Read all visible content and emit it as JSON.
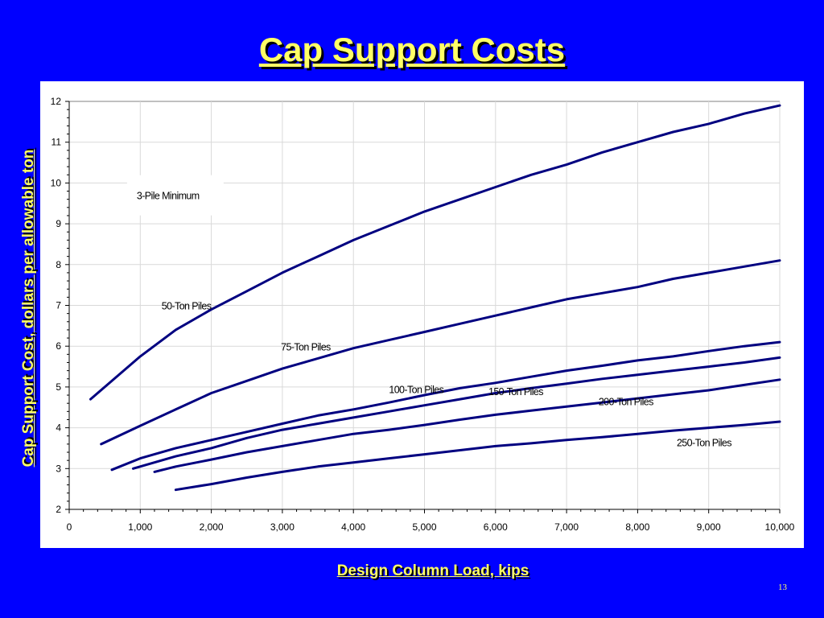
{
  "slide": {
    "title": "Cap Support Costs",
    "page_number": "13",
    "background_color": "#0000ff",
    "title_color": "#ffff66"
  },
  "chart_data": {
    "type": "line",
    "title": "Cap Support Costs",
    "xlabel": "Design Column Load, kips",
    "ylabel": "Cap Support Cost, dollars per allowable ton",
    "xlim": [
      0,
      10000
    ],
    "ylim": [
      2,
      12
    ],
    "x_ticks": [
      0,
      1000,
      2000,
      3000,
      4000,
      5000,
      6000,
      7000,
      8000,
      9000,
      10000
    ],
    "x_tick_labels": [
      "0",
      "1,000",
      "2,000",
      "3,000",
      "4,000",
      "5,000",
      "6,000",
      "7,000",
      "8,000",
      "9,000",
      "10,000"
    ],
    "y_ticks": [
      2,
      3,
      4,
      5,
      6,
      7,
      8,
      9,
      10,
      11,
      12
    ],
    "y_tick_labels": [
      "2",
      "3",
      "4",
      "5",
      "6",
      "7",
      "8",
      "9",
      "10",
      "11",
      "12"
    ],
    "grid": true,
    "line_color": "#000080",
    "annotations": [
      "3-Pile Minimum",
      "50-Ton Piles",
      "75-Ton Piles",
      "100-Ton Piles",
      "150-Ton Piles",
      "200-Ton Piles",
      "250-Ton Piles"
    ],
    "series": [
      {
        "name": "50-Ton Piles",
        "x": [
          300,
          500,
          1000,
          1500,
          2000,
          2500,
          3000,
          3500,
          4000,
          4500,
          5000,
          5500,
          6000,
          6500,
          7000,
          7500,
          8000,
          8500,
          9000,
          9500,
          10000
        ],
        "y": [
          4.7,
          5.0,
          5.75,
          6.4,
          6.9,
          7.35,
          7.8,
          8.2,
          8.6,
          8.95,
          9.3,
          9.6,
          9.9,
          10.2,
          10.45,
          10.75,
          11.0,
          11.25,
          11.45,
          11.7,
          11.9
        ]
      },
      {
        "name": "75-Ton Piles",
        "x": [
          450,
          1000,
          1500,
          2000,
          2500,
          3000,
          3500,
          4000,
          4500,
          5000,
          5500,
          6000,
          6500,
          7000,
          7500,
          8000,
          8500,
          9000,
          9500,
          10000
        ],
        "y": [
          3.6,
          4.05,
          4.45,
          4.85,
          5.15,
          5.45,
          5.7,
          5.95,
          6.15,
          6.35,
          6.55,
          6.75,
          6.95,
          7.15,
          7.3,
          7.45,
          7.65,
          7.8,
          7.95,
          8.1
        ]
      },
      {
        "name": "100-Ton Piles",
        "x": [
          600,
          1000,
          1500,
          2000,
          2500,
          3000,
          3500,
          4000,
          4500,
          5000,
          5500,
          6000,
          6500,
          7000,
          7500,
          8000,
          8500,
          9000,
          9500,
          10000
        ],
        "y": [
          2.97,
          3.25,
          3.5,
          3.7,
          3.9,
          4.1,
          4.3,
          4.45,
          4.62,
          4.8,
          4.97,
          5.1,
          5.25,
          5.4,
          5.52,
          5.65,
          5.75,
          5.88,
          6.0,
          6.1
        ]
      },
      {
        "name": "150-Ton Piles",
        "x": [
          900,
          1500,
          2000,
          2500,
          3000,
          3500,
          4000,
          4500,
          5000,
          5500,
          6000,
          6500,
          7000,
          7500,
          8000,
          8500,
          9000,
          9500,
          10000
        ],
        "y": [
          3.0,
          3.3,
          3.5,
          3.75,
          3.95,
          4.1,
          4.25,
          4.4,
          4.55,
          4.7,
          4.85,
          4.97,
          5.08,
          5.2,
          5.3,
          5.4,
          5.5,
          5.6,
          5.72
        ]
      },
      {
        "name": "200-Ton Piles",
        "x": [
          1200,
          1500,
          2000,
          2500,
          3000,
          3500,
          4000,
          4500,
          5000,
          5500,
          6000,
          6500,
          7000,
          7500,
          8000,
          8500,
          9000,
          9500,
          10000
        ],
        "y": [
          2.92,
          3.05,
          3.22,
          3.4,
          3.55,
          3.7,
          3.85,
          3.95,
          4.07,
          4.2,
          4.32,
          4.42,
          4.52,
          4.62,
          4.72,
          4.82,
          4.92,
          5.05,
          5.18
        ]
      },
      {
        "name": "250-Ton Piles",
        "x": [
          1500,
          2000,
          2500,
          3000,
          3500,
          4000,
          4500,
          5000,
          5500,
          6000,
          6500,
          7000,
          7500,
          8000,
          8500,
          9000,
          9500,
          10000
        ],
        "y": [
          2.48,
          2.62,
          2.78,
          2.92,
          3.05,
          3.15,
          3.25,
          3.35,
          3.45,
          3.55,
          3.62,
          3.7,
          3.77,
          3.85,
          3.93,
          4.0,
          4.07,
          4.15
        ]
      }
    ]
  }
}
